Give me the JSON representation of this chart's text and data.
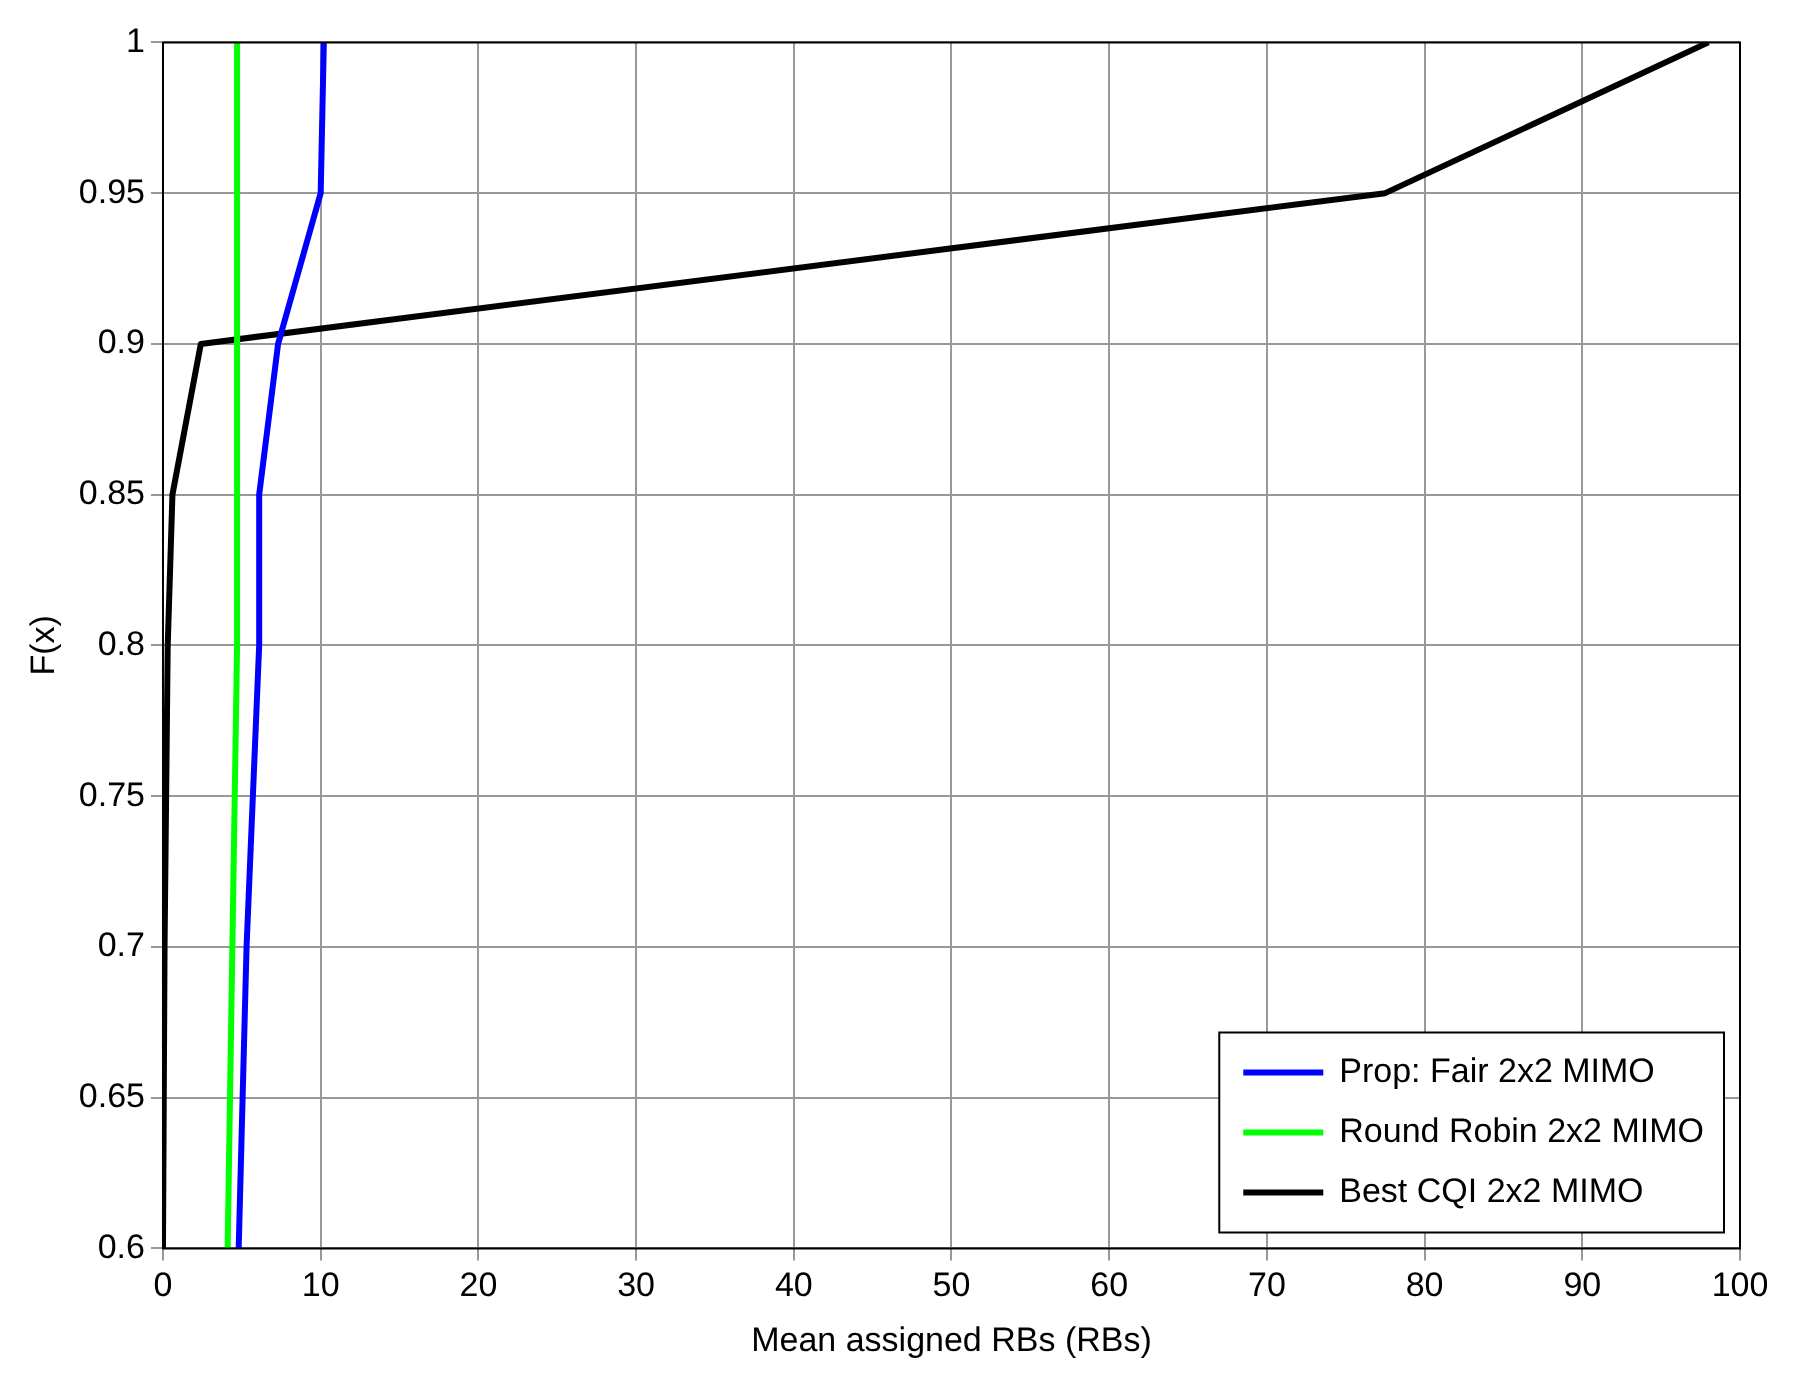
{
  "chart_data": {
    "type": "line",
    "xlabel": "Mean assigned RBs (RBs)",
    "ylabel": "F(x)",
    "xlim": [
      0,
      100
    ],
    "xticks": [
      0,
      10,
      20,
      30,
      40,
      50,
      60,
      70,
      80,
      90,
      100
    ],
    "ylim": [
      0.6,
      1
    ],
    "yticks": [
      0.6,
      0.65,
      0.7,
      0.75,
      0.8,
      0.85,
      0.9,
      0.95,
      1
    ],
    "grid": true,
    "legend": "bottom right",
    "marker": "none",
    "line_style": "solid",
    "series": [
      {
        "name": "Prop: Fair 2x2 MIMO",
        "color": "#0000ff",
        "x": [
          4.8,
          5.3,
          6.1,
          6.1,
          7.3,
          10,
          10.2
        ],
        "values": [
          0.6,
          0.7,
          0.8,
          0.85,
          0.9,
          0.95,
          1
        ]
      },
      {
        "name": "Round Robin 2x2 MIMO",
        "color": "#00ff00",
        "x": [
          4.1,
          4.7,
          4.7
        ],
        "values": [
          0.6,
          0.8,
          1
        ]
      },
      {
        "name": "Best CQI 2x2 MIMO",
        "color": "#000000",
        "x": [
          0,
          0.1,
          0.3,
          0.6,
          2.4,
          77.5,
          98
        ],
        "values": [
          0.6,
          0.7,
          0.8,
          0.85,
          0.9,
          0.95,
          1
        ]
      }
    ]
  }
}
